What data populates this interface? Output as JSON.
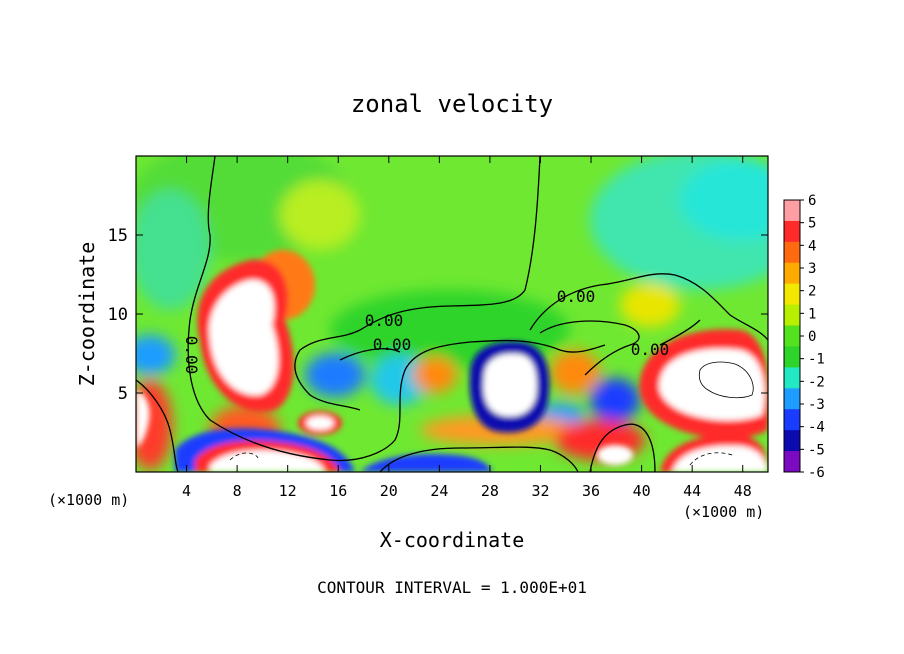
{
  "chart_data": {
    "type": "heatmap",
    "title": "zonal velocity",
    "xlabel": "X-coordinate",
    "ylabel": "Z-coordinate",
    "x_unit_label": "(×1000 m)",
    "x_unit_label_right": "(×1000 m)",
    "footer": "CONTOUR INTERVAL = 1.000E+01",
    "xlim": [
      0,
      50
    ],
    "ylim": [
      0,
      20
    ],
    "x_ticks": [
      4,
      8,
      12,
      16,
      20,
      24,
      28,
      32,
      36,
      40,
      44,
      48
    ],
    "y_ticks": [
      5,
      10,
      15
    ],
    "colorbar": {
      "ticks": [
        6,
        5,
        4,
        3,
        2,
        1,
        0,
        -1,
        -2,
        -3,
        -4,
        -5,
        -6
      ],
      "range": [
        -6,
        6
      ],
      "colors": [
        "#ff9fa4",
        "#ff2a2a",
        "#ff6a10",
        "#ffaa00",
        "#f2e800",
        "#b8ee00",
        "#55e21e",
        "#2ed42a",
        "#22e8c4",
        "#1e9cff",
        "#1a3cff",
        "#0b0bb0",
        "#7c0ac0"
      ]
    },
    "contour_labels": [
      "0.00",
      "0.00",
      "0.00",
      "0.00",
      "0.00"
    ],
    "features": [
      {
        "name": "positive jet",
        "x": 10,
        "z": 9,
        "value": 7
      },
      {
        "name": "positive core",
        "x": 46,
        "z": 6.5,
        "value": 7
      },
      {
        "name": "positive near surface",
        "x": 10,
        "z": 1,
        "value": 7
      },
      {
        "name": "negative core",
        "x": 30,
        "z": 6,
        "value": -7
      },
      {
        "name": "negative core",
        "x": 39,
        "z": 5,
        "value": -5
      },
      {
        "name": "negative near surface",
        "x": 3,
        "z": 7,
        "value": -3
      },
      {
        "name": "upper background",
        "x": 28,
        "z": 17,
        "value": 0.3
      },
      {
        "name": "upper-right background",
        "x": 46,
        "z": 16,
        "value": -1.5
      }
    ]
  }
}
